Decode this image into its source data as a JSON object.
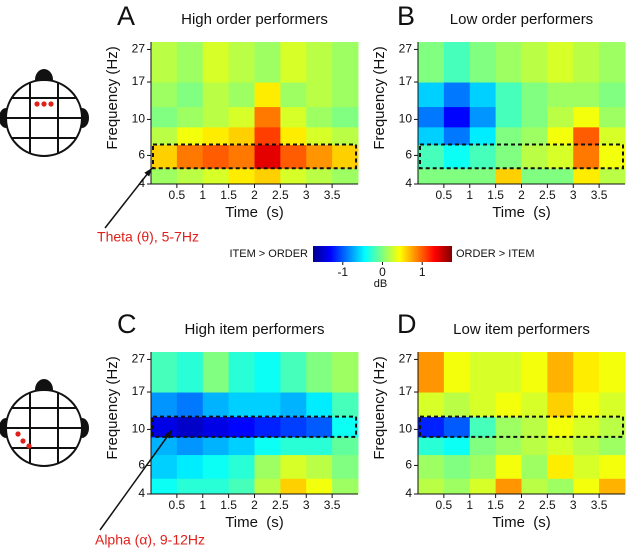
{
  "chart_data": [
    {
      "type": "heatmap",
      "panel_label": "A",
      "title": "High order performers",
      "x_label": "Time  (s)",
      "y_label": "Frequency (Hz)",
      "x_edges": [
        0,
        0.5,
        1,
        1.5,
        2,
        2.5,
        3,
        3.5,
        4
      ],
      "y_edges": [
        4,
        5,
        7,
        9,
        12,
        17,
        30
      ],
      "values": [
        [
          0.1,
          0.2,
          0.3,
          0.5,
          0.6,
          0.3,
          0.2,
          0.1
        ],
        [
          0.6,
          0.9,
          1.0,
          0.9,
          1.4,
          1.0,
          0.8,
          0.6
        ],
        [
          0.2,
          0.4,
          0.5,
          0.6,
          1.1,
          0.5,
          0.3,
          0.2
        ],
        [
          0,
          0.1,
          0.2,
          0.3,
          0.9,
          0.3,
          0.1,
          0
        ],
        [
          0.1,
          0,
          0.2,
          0.1,
          0.5,
          0.1,
          0.2,
          0.1
        ],
        [
          0.2,
          0.1,
          0.3,
          0.2,
          0.1,
          0.3,
          0.2,
          0.1
        ]
      ],
      "xlim": [
        0,
        4
      ],
      "ylim": [
        4,
        30
      ],
      "xticks": [
        0.5,
        1,
        1.5,
        2,
        2.5,
        3,
        3.5
      ],
      "yticks": [
        4,
        6,
        10,
        17,
        27
      ],
      "log_y": true,
      "band": [
        5,
        7
      ],
      "annotation": "Theta (θ), 5-7Hz"
    },
    {
      "type": "heatmap",
      "panel_label": "B",
      "title": "Low order performers",
      "x_label": "Time  (s)",
      "y_label": "Frequency (Hz)",
      "x_edges": [
        0,
        0.5,
        1,
        1.5,
        2,
        2.5,
        3,
        3.5,
        4
      ],
      "y_edges": [
        4,
        5,
        7,
        9,
        12,
        17,
        30
      ],
      "values": [
        [
          0,
          0,
          0,
          0.6,
          0,
          0,
          0.5,
          0.2
        ],
        [
          -0.2,
          -0.4,
          -0.2,
          0,
          0.2,
          0.3,
          0.9,
          0.4
        ],
        [
          -0.6,
          -0.9,
          -0.5,
          0,
          0.1,
          0.4,
          1.0,
          0.3
        ],
        [
          -0.9,
          -1.3,
          -0.8,
          -0.2,
          0,
          0.2,
          0.4,
          0.1
        ],
        [
          -0.6,
          -0.9,
          -0.6,
          -0.2,
          0,
          0.1,
          0.1,
          0
        ],
        [
          0,
          -0.2,
          0,
          0.1,
          0.2,
          0.3,
          0.2,
          0.1
        ]
      ],
      "xlim": [
        0,
        4
      ],
      "ylim": [
        4,
        30
      ],
      "xticks": [
        0.5,
        1,
        1.5,
        2,
        2.5,
        3,
        3.5
      ],
      "yticks": [
        4,
        6,
        10,
        17,
        27
      ],
      "log_y": true,
      "band": [
        5,
        7
      ]
    },
    {
      "type": "heatmap",
      "panel_label": "C",
      "title": "High item performers",
      "x_label": "Time  (s)",
      "y_label": "Frequency (Hz)",
      "x_edges": [
        0,
        0.5,
        1,
        1.5,
        2,
        2.5,
        3,
        3.5,
        4
      ],
      "y_edges": [
        4,
        5,
        7,
        9,
        12,
        17,
        30
      ],
      "values": [
        [
          -0.4,
          -0.3,
          -0.3,
          -0.2,
          0.2,
          0.6,
          0.4,
          0.1
        ],
        [
          -0.6,
          -0.5,
          -0.4,
          -0.3,
          0.1,
          0.3,
          0.2,
          0
        ],
        [
          -0.7,
          -0.8,
          -0.7,
          -0.6,
          -0.4,
          -0.3,
          -0.3,
          -0.1
        ],
        [
          -1.4,
          -1.5,
          -1.4,
          -1.3,
          -1.2,
          -1.1,
          -1.0,
          -0.4
        ],
        [
          -0.8,
          -0.9,
          -0.7,
          -0.6,
          -0.6,
          -0.7,
          -0.5,
          -0.2
        ],
        [
          -0.2,
          -0.3,
          0,
          -0.3,
          -0.4,
          -0.2,
          0,
          0.1
        ]
      ],
      "xlim": [
        0,
        4
      ],
      "ylim": [
        4,
        30
      ],
      "xticks": [
        0.5,
        1,
        1.5,
        2,
        2.5,
        3,
        3.5
      ],
      "yticks": [
        4,
        6,
        10,
        17,
        27
      ],
      "log_y": true,
      "band": [
        9,
        12
      ],
      "annotation": "Alpha (α), 9-12Hz"
    },
    {
      "type": "heatmap",
      "panel_label": "D",
      "title": "Low item performers",
      "x_label": "Time  (s)",
      "y_label": "Frequency (Hz)",
      "x_edges": [
        0,
        0.5,
        1,
        1.5,
        2,
        2.5,
        3,
        3.5,
        4
      ],
      "y_edges": [
        4,
        5,
        7,
        9,
        12,
        17,
        30
      ],
      "values": [
        [
          0.2,
          0.1,
          0.3,
          0.8,
          0.2,
          0.1,
          0.4,
          0.7
        ],
        [
          0.1,
          0,
          0.1,
          0.4,
          0.1,
          0.5,
          0.3,
          0.4
        ],
        [
          -0.3,
          -0.4,
          0,
          0.1,
          0.2,
          0.3,
          0.2,
          0.1
        ],
        [
          -1.2,
          -1.0,
          -0.2,
          0.1,
          0.2,
          0.4,
          0.3,
          0.2
        ],
        [
          0.3,
          0.2,
          0.3,
          0.4,
          0.3,
          0.6,
          0.4,
          0.3
        ],
        [
          0.8,
          0.4,
          0.3,
          0.3,
          0.4,
          0.7,
          0.5,
          0.4
        ]
      ],
      "xlim": [
        0,
        4
      ],
      "ylim": [
        4,
        30
      ],
      "xticks": [
        0.5,
        1,
        1.5,
        2,
        2.5,
        3,
        3.5
      ],
      "yticks": [
        4,
        6,
        10,
        17,
        27
      ],
      "log_y": true,
      "band": [
        9,
        12
      ]
    }
  ],
  "colorbar": {
    "left_label": "ITEM > ORDER",
    "right_label": "ORDER > ITEM",
    "unit": "dB",
    "lim": [
      -1.75,
      1.75
    ],
    "ticks": [
      -1,
      0,
      1
    ]
  }
}
